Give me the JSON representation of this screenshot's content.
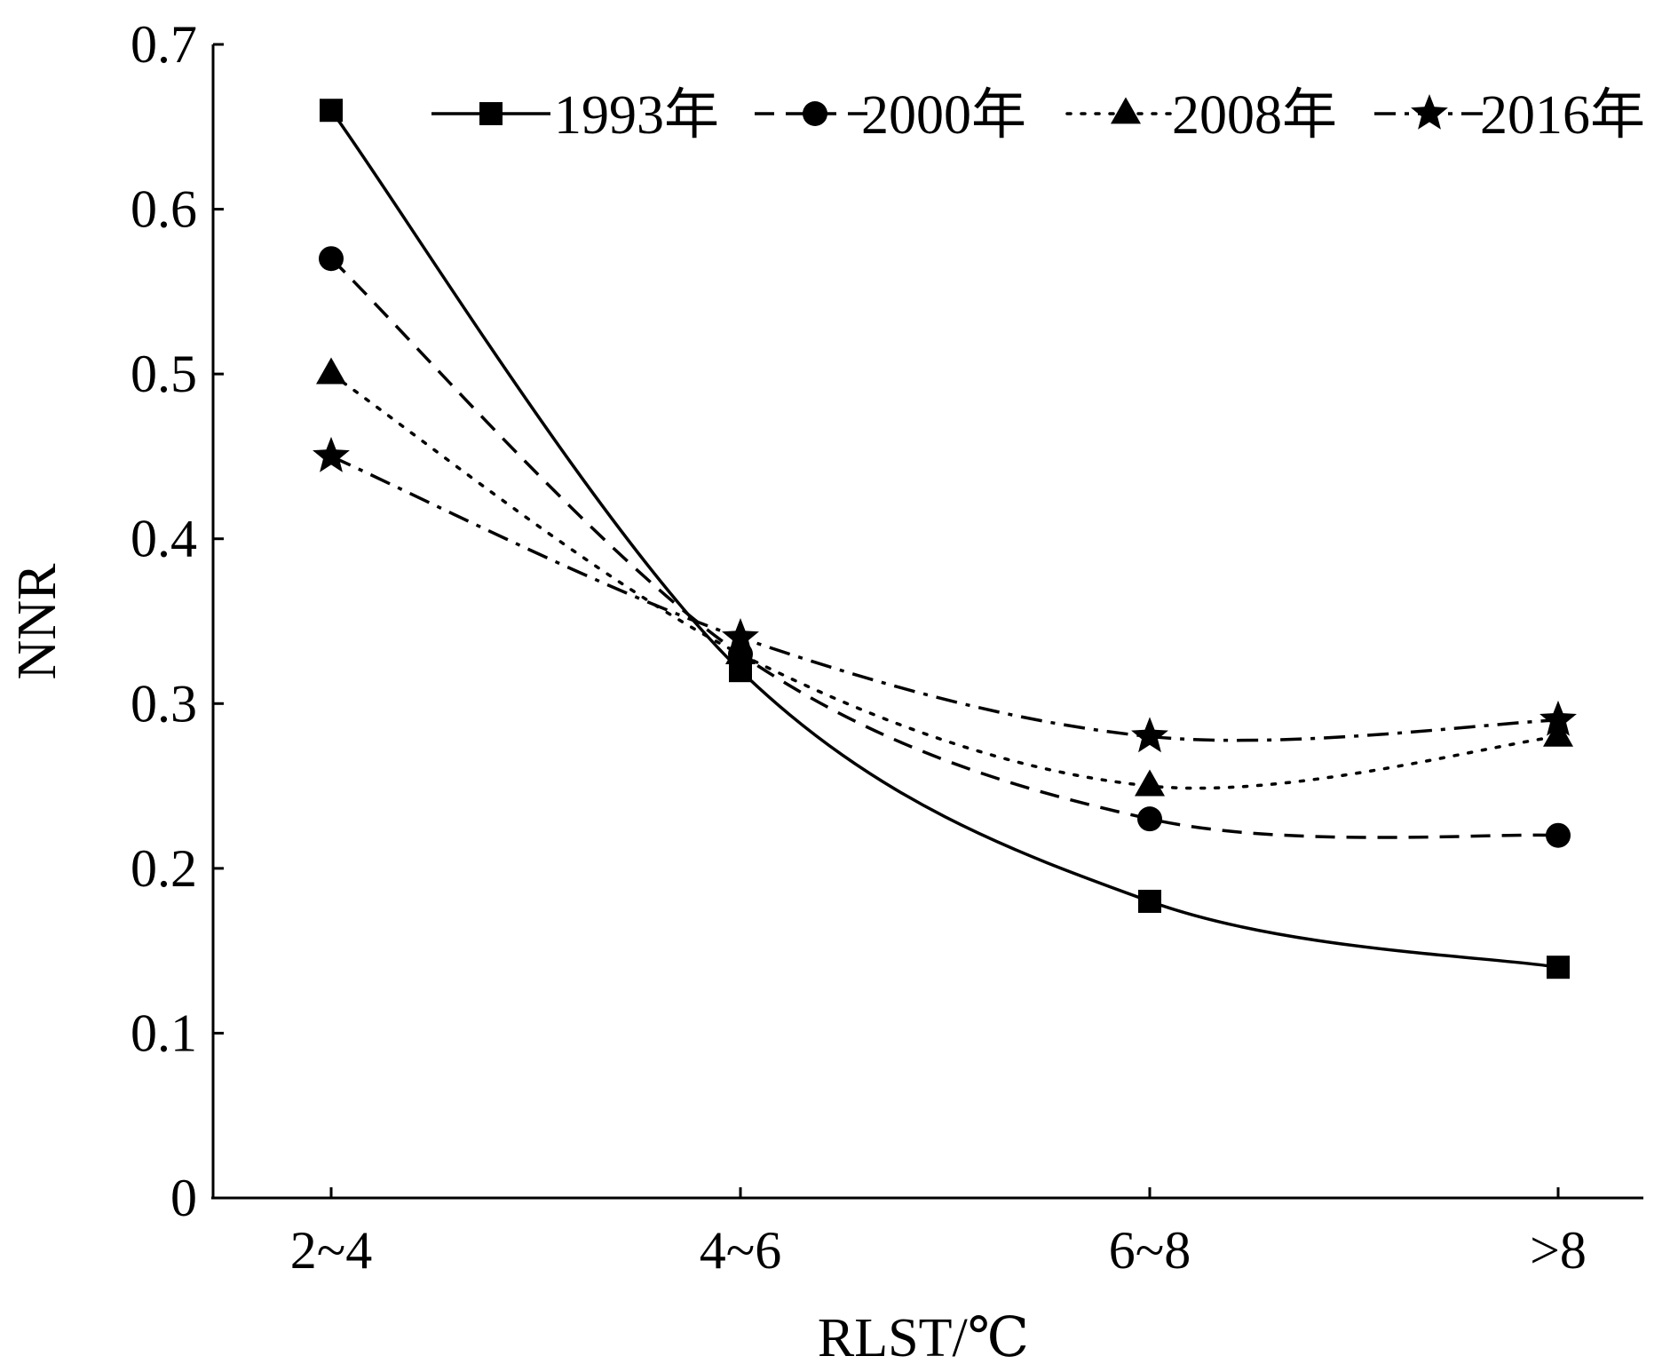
{
  "chart_data": {
    "type": "line",
    "xlabel": "RLST/℃",
    "ylabel": "NNR",
    "categories": [
      "2~4",
      "4~6",
      "6~8",
      ">8"
    ],
    "ylim": [
      0,
      0.7
    ],
    "yticks": [
      "0",
      "0.1",
      "0.2",
      "0.3",
      "0.4",
      "0.5",
      "0.6",
      "0.7"
    ],
    "grid": false,
    "legend_position": "top",
    "series": [
      {
        "name": "1993年",
        "values": [
          0.66,
          0.32,
          0.18,
          0.14
        ],
        "marker": "square",
        "dash": "solid"
      },
      {
        "name": "2000年",
        "values": [
          0.57,
          0.33,
          0.23,
          0.22
        ],
        "marker": "circle",
        "dash": "dashed"
      },
      {
        "name": "2008年",
        "values": [
          0.5,
          0.33,
          0.25,
          0.28
        ],
        "marker": "triangle",
        "dash": "dotted"
      },
      {
        "name": "2016年",
        "values": [
          0.45,
          0.34,
          0.28,
          0.29
        ],
        "marker": "star",
        "dash": "dashdot"
      }
    ]
  }
}
